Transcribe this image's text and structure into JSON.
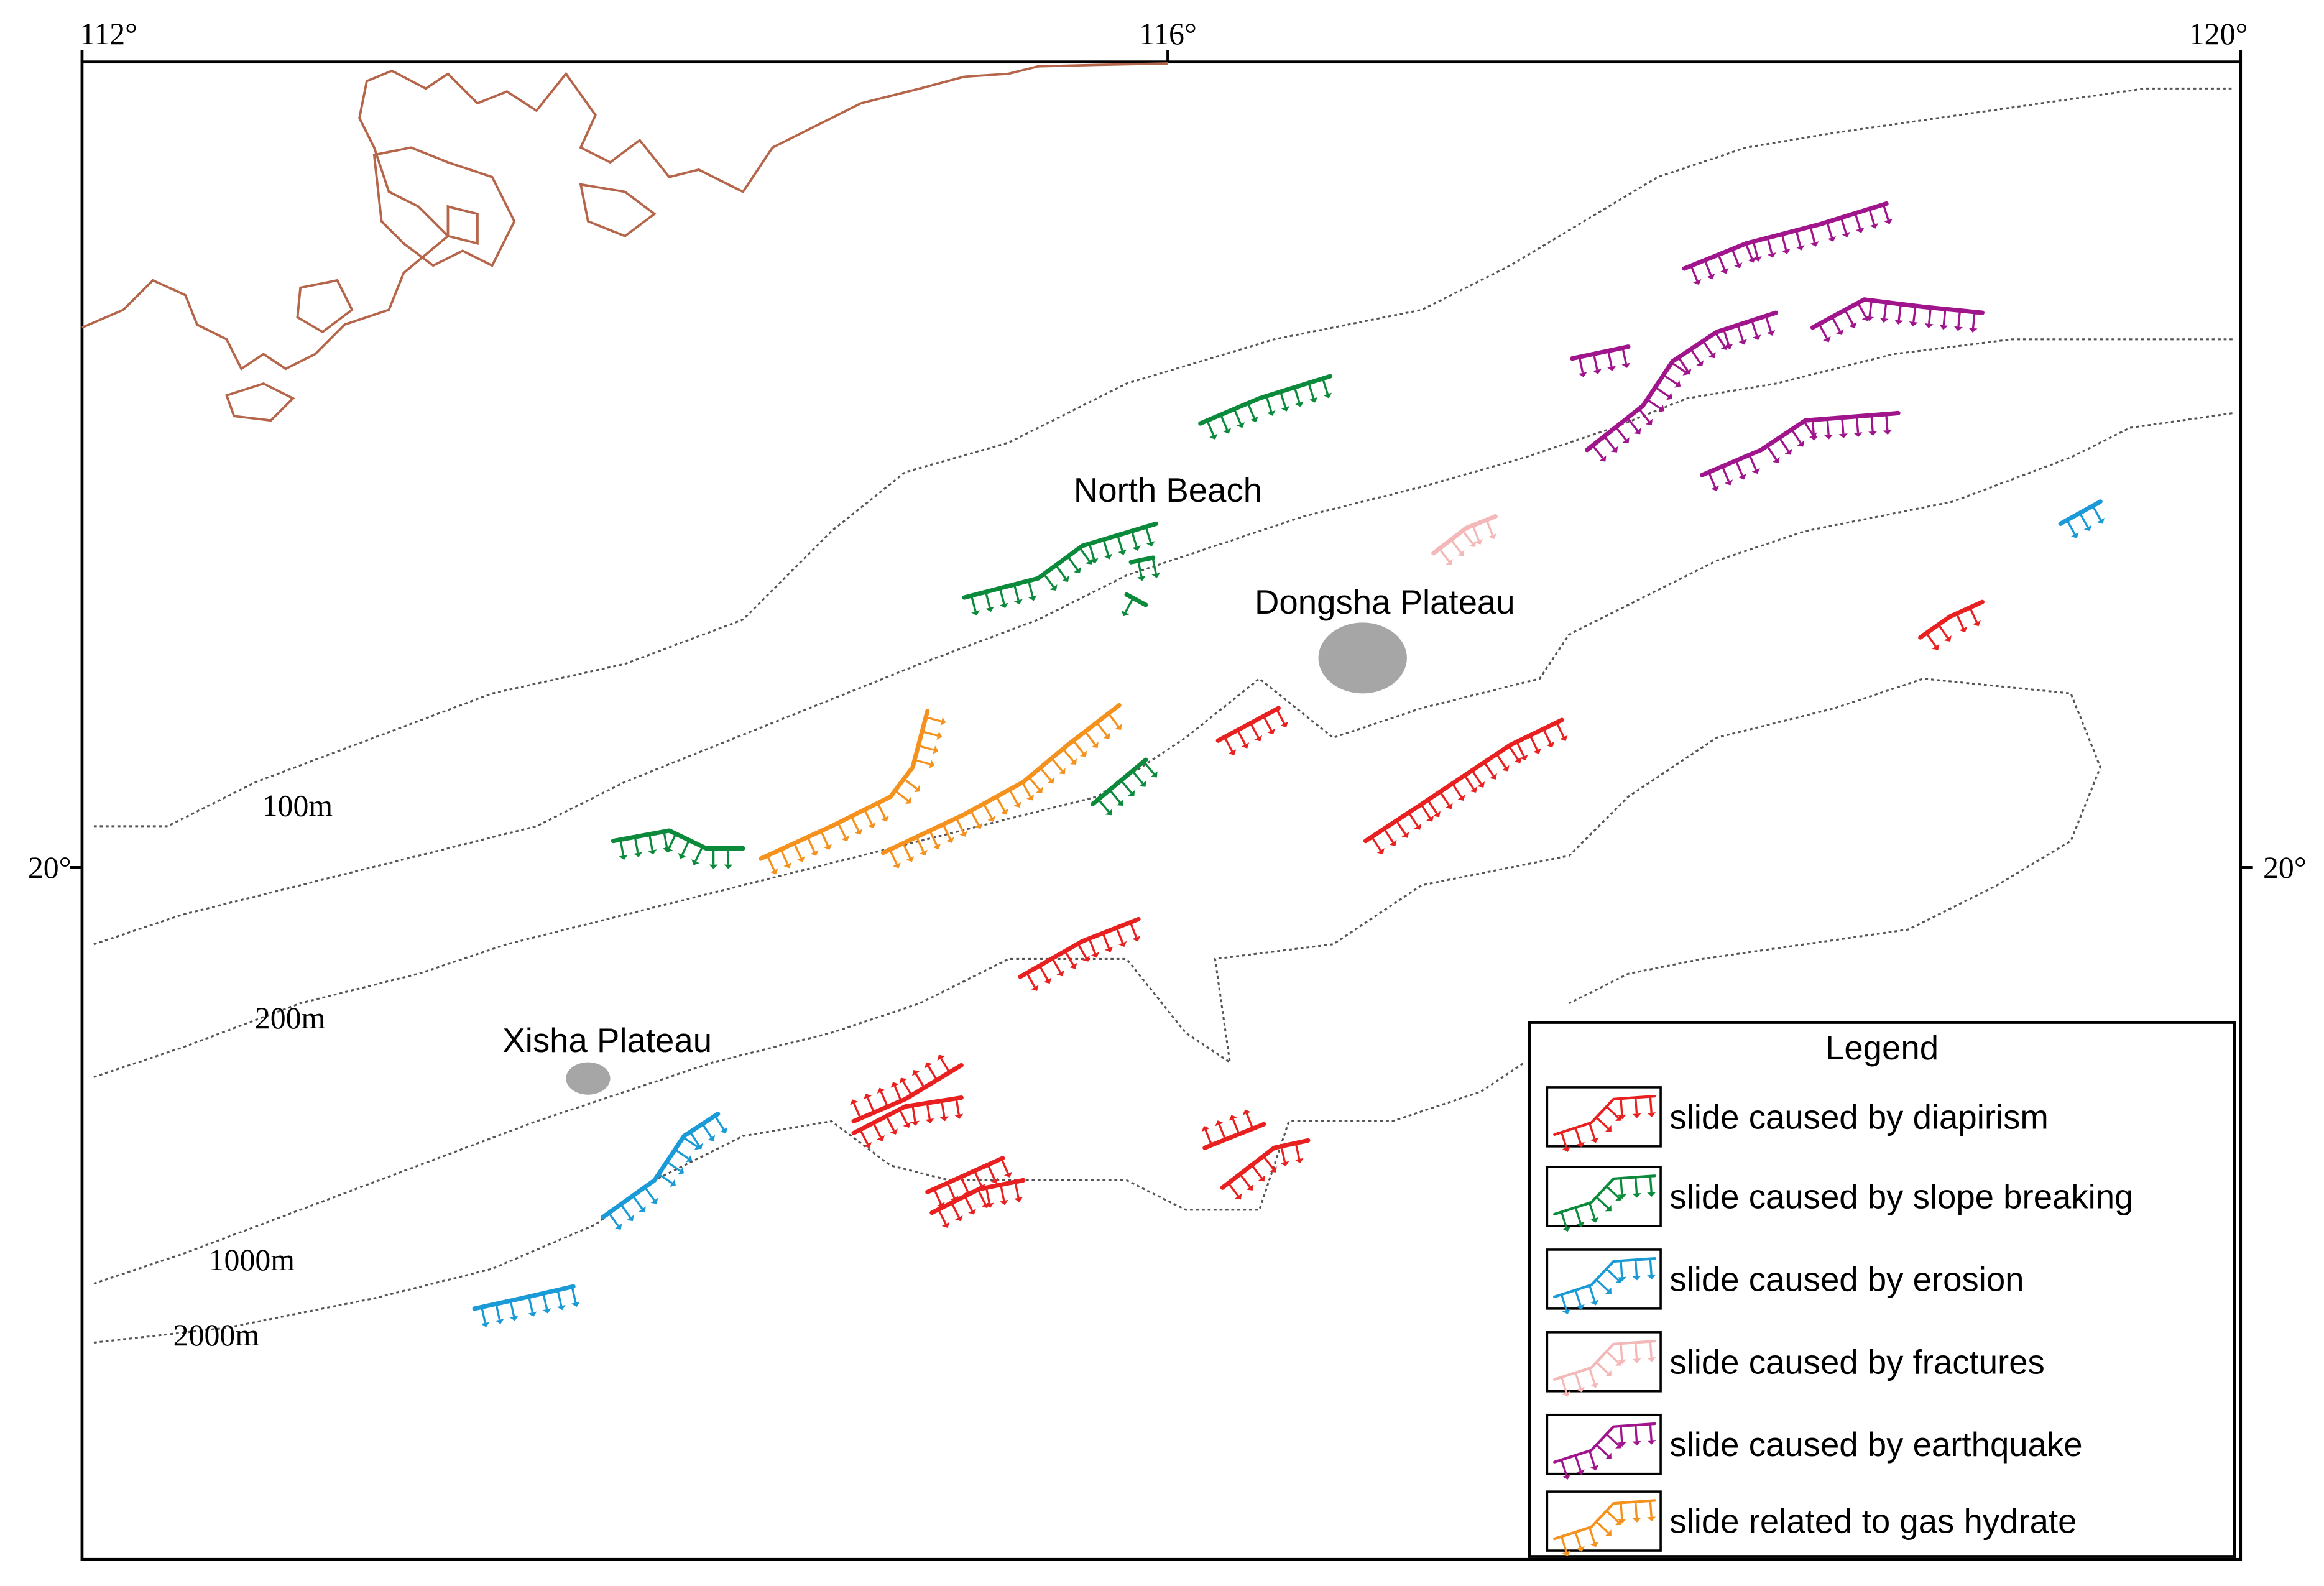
{
  "axes": {
    "top": [
      "112°",
      "116°",
      "120°"
    ],
    "left": "20°",
    "right": "20°"
  },
  "depth_labels": [
    "100m",
    "200m",
    "1000m",
    "2000m"
  ],
  "places": [
    "North Beach",
    "Dongsha Plateau",
    "Xisha Plateau"
  ],
  "legend": {
    "title": "Legend",
    "items": [
      {
        "label": "slide caused by diapirism",
        "color": "#e8201f"
      },
      {
        "label": "slide caused by slope breaking",
        "color": "#0a8a3a"
      },
      {
        "label": "slide caused by erosion",
        "color": "#1a9ad6"
      },
      {
        "label": "slide caused by fractures",
        "color": "#f4b8b8"
      },
      {
        "label": "slide caused by earthquake",
        "color": "#a0148c"
      },
      {
        "label": "slide related to gas hydrate",
        "color": "#f5921e"
      }
    ]
  }
}
